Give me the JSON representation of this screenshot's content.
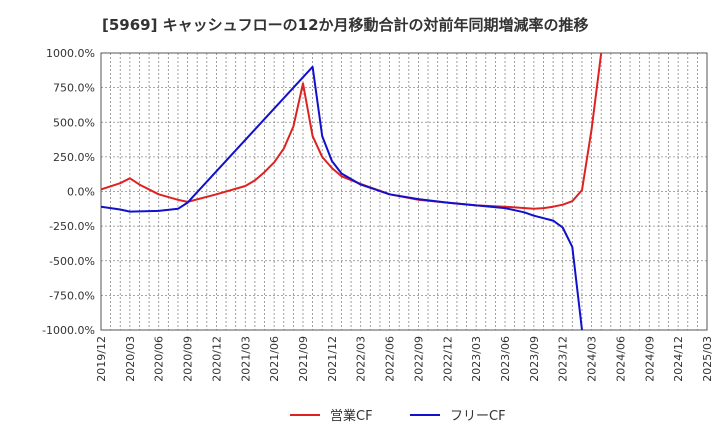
{
  "chart_data": {
    "type": "line",
    "title": "[5969]  キャッシュフローの12か月移動合計の対前年同期増減率の推移",
    "xlabel": "",
    "ylabel": "",
    "ylim": [
      -1000,
      1000
    ],
    "yticks": [
      1000,
      750,
      500,
      250,
      0,
      -250,
      -500,
      -750,
      -1000
    ],
    "ytick_labels": [
      "1000.0%",
      "750.0%",
      "500.0%",
      "250.0%",
      "0.0%",
      "-250.0%",
      "-500.0%",
      "-750.0%",
      "-1000.0%"
    ],
    "xticks": [
      "2019/12",
      "2020/03",
      "2020/06",
      "2020/09",
      "2020/12",
      "2021/03",
      "2021/06",
      "2021/09",
      "2021/12",
      "2022/03",
      "2022/06",
      "2022/09",
      "2022/12",
      "2023/03",
      "2023/06",
      "2023/09",
      "2023/12",
      "2024/03",
      "2024/06",
      "2024/09",
      "2024/12",
      "2025/03"
    ],
    "grid": true,
    "legend_position": "bottom",
    "series": [
      {
        "name": "営業CF",
        "color": "#dd2222",
        "x": [
          "2019/12",
          "2020/02",
          "2020/03",
          "2020/04",
          "2020/06",
          "2020/08",
          "2020/09",
          "2020/12",
          "2021/03",
          "2021/04",
          "2021/05",
          "2021/06",
          "2021/07",
          "2021/08",
          "2021/09",
          "2021/10",
          "2021/11",
          "2021/12",
          "2022/01",
          "2022/03",
          "2022/06",
          "2022/09",
          "2022/12",
          "2023/03",
          "2023/06",
          "2023/09",
          "2023/10",
          "2023/11",
          "2023/12",
          "2024/01",
          "2024/02",
          "2024/03",
          "2024/04"
        ],
        "values": [
          15,
          60,
          95,
          50,
          -20,
          -60,
          -75,
          -20,
          40,
          80,
          140,
          210,
          310,
          470,
          780,
          400,
          250,
          170,
          110,
          55,
          -20,
          -60,
          -80,
          -100,
          -110,
          -125,
          -120,
          -110,
          -95,
          -70,
          10,
          450,
          1000
        ]
      },
      {
        "name": "フリーCF",
        "color": "#1111cc",
        "x": [
          "2019/12",
          "2020/02",
          "2020/03",
          "2020/06",
          "2020/08",
          "2020/09",
          "2021/10",
          "2021/11",
          "2021/12",
          "2022/01",
          "2022/03",
          "2022/06",
          "2022/09",
          "2022/12",
          "2023/03",
          "2023/06",
          "2023/08",
          "2023/09",
          "2023/11",
          "2023/12",
          "2024/01",
          "2024/02"
        ],
        "values": [
          -110,
          -130,
          -145,
          -140,
          -125,
          -80,
          900,
          400,
          220,
          130,
          50,
          -20,
          -55,
          -80,
          -100,
          -120,
          -150,
          -175,
          -210,
          -260,
          -400,
          -1000
        ]
      }
    ]
  }
}
